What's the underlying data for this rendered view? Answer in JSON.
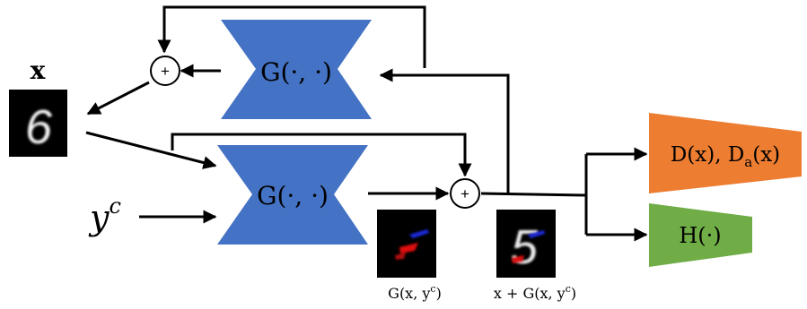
{
  "diagram": {
    "input_label": "x",
    "condition_label": "y",
    "condition_superscript": "c",
    "generator_top_label": "G(·, ·)",
    "generator_bottom_label": "G(·, ·)",
    "adder_symbol": "+",
    "discriminator_label": "D(x), D",
    "discriminator_sub": "a",
    "discriminator_tail": "(x)",
    "classifier_label": "H(·)",
    "perturbation_caption": "G(x, y",
    "perturbation_caption_sup": "c",
    "perturbation_caption_end": ")",
    "adversarial_caption": "x + G(x, y",
    "adversarial_caption_sup": "c",
    "adversarial_caption_end": ")",
    "input_digit": "6",
    "adversarial_digit": "5"
  },
  "colors": {
    "generator_fill": "#4472c4",
    "discriminator_fill": "#ed7d31",
    "classifier_fill": "#70ad47",
    "arrow": "#000000",
    "image_bg": "#000000",
    "perturb_red": "#e01010",
    "perturb_blue": "#1020e0"
  }
}
